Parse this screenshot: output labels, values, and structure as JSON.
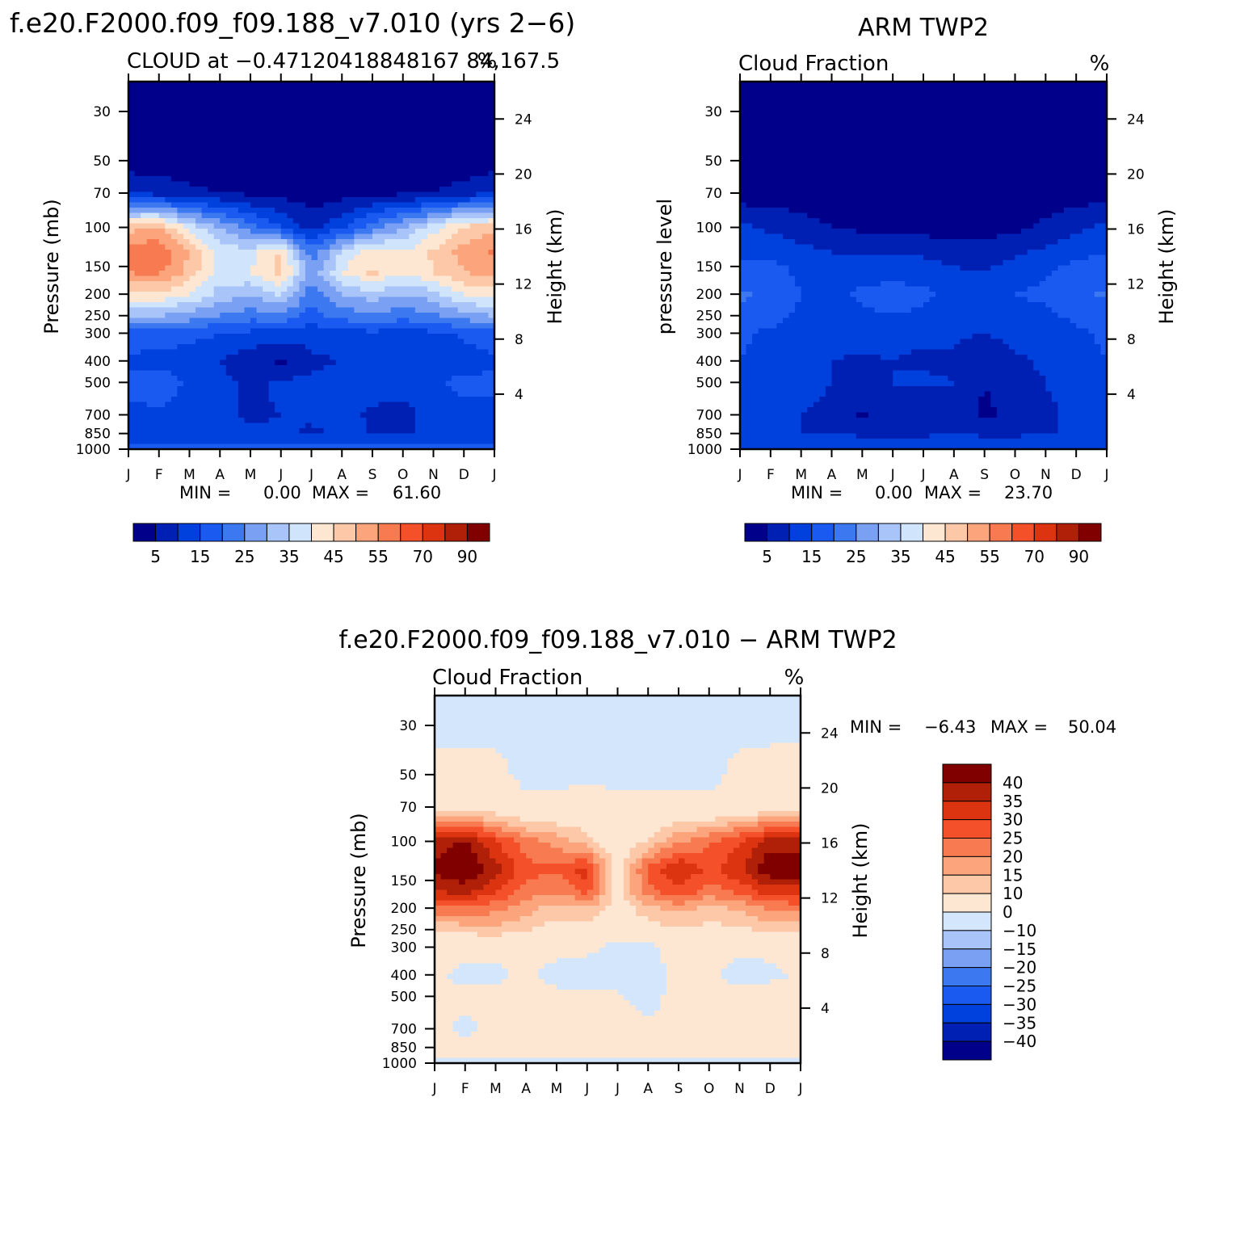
{
  "chart_data": [
    {
      "type": "heatmap",
      "panel_title": "f.e20.F2000.f09_f09.188_v7.010 (yrs 2−6)",
      "left_label": "CLOUD at −0.47120418848167 84,167.5",
      "units": "%",
      "ylabel": "Pressure (mb)",
      "y2label": "Height (km)",
      "x_ticks": [
        "J",
        "F",
        "M",
        "A",
        "M",
        "J",
        "J",
        "A",
        "S",
        "O",
        "N",
        "D",
        "J"
      ],
      "y_ticks": [
        "30",
        "50",
        "70",
        "100",
        "150",
        "200",
        "250",
        "300",
        "400",
        "500",
        "700",
        "850",
        "1000"
      ],
      "y2_ticks": [
        "24",
        "20",
        "16",
        "12",
        "8",
        "4"
      ],
      "stats": {
        "min_label": "MIN =",
        "min": "0.00",
        "max_label": "MAX =",
        "max": "61.60"
      },
      "levels": [
        0,
        5,
        10,
        15,
        20,
        25,
        30,
        35,
        40,
        45,
        50,
        55,
        60,
        70,
        80,
        90
      ],
      "colorbar_labels": [
        "5",
        "15",
        "25",
        "35",
        "45",
        "55",
        "70",
        "90"
      ],
      "colorbar_orientation": "horizontal",
      "bands": [
        {
          "p": 30,
          "values": [
            2,
            2,
            2,
            2,
            2,
            2,
            2,
            2,
            2,
            2,
            2,
            2,
            2
          ]
        },
        {
          "p": 50,
          "values": [
            2,
            2,
            2,
            2,
            2,
            2,
            2,
            2,
            2,
            2,
            2,
            2,
            2
          ]
        },
        {
          "p": 70,
          "values": [
            10,
            8,
            6,
            5,
            4,
            3,
            2,
            3,
            4,
            4,
            5,
            7,
            10
          ]
        },
        {
          "p": 100,
          "values": [
            48,
            50,
            38,
            30,
            22,
            15,
            8,
            14,
            22,
            30,
            38,
            46,
            48
          ]
        },
        {
          "p": 130,
          "values": [
            58,
            60,
            50,
            38,
            38,
            46,
            22,
            36,
            44,
            40,
            46,
            52,
            56
          ]
        },
        {
          "p": 160,
          "values": [
            55,
            56,
            48,
            38,
            40,
            47,
            26,
            40,
            46,
            40,
            45,
            50,
            52
          ]
        },
        {
          "p": 200,
          "values": [
            45,
            44,
            40,
            33,
            30,
            36,
            22,
            30,
            33,
            30,
            33,
            40,
            42
          ]
        },
        {
          "p": 250,
          "values": [
            30,
            30,
            28,
            25,
            22,
            24,
            18,
            22,
            24,
            22,
            24,
            28,
            30
          ]
        },
        {
          "p": 300,
          "values": [
            18,
            18,
            17,
            15,
            14,
            13,
            12,
            13,
            14,
            13,
            14,
            16,
            18
          ]
        },
        {
          "p": 400,
          "values": [
            14,
            13,
            12,
            10,
            7,
            4,
            9,
            10,
            10,
            10,
            11,
            12,
            14
          ]
        },
        {
          "p": 500,
          "values": [
            16,
            18,
            14,
            11,
            9,
            11,
            11,
            12,
            13,
            12,
            14,
            17,
            16
          ]
        },
        {
          "p": 700,
          "values": [
            14,
            14,
            13,
            12,
            9,
            10,
            11,
            12,
            9,
            8,
            12,
            13,
            14
          ]
        },
        {
          "p": 850,
          "values": [
            12,
            12,
            12,
            11,
            11,
            11,
            9,
            11,
            10,
            9,
            11,
            12,
            12
          ]
        },
        {
          "p": 1000,
          "values": [
            17,
            17,
            17,
            17,
            17,
            17,
            17,
            17,
            17,
            17,
            17,
            17,
            17
          ]
        }
      ]
    },
    {
      "type": "heatmap",
      "panel_title": "ARM TWP2",
      "left_label": "Cloud Fraction",
      "units": "%",
      "ylabel": "pressure level",
      "y2label": "Height (km)",
      "x_ticks": [
        "J",
        "F",
        "M",
        "A",
        "M",
        "J",
        "J",
        "A",
        "S",
        "O",
        "N",
        "D",
        "J"
      ],
      "y_ticks": [
        "30",
        "50",
        "70",
        "100",
        "150",
        "200",
        "250",
        "300",
        "400",
        "500",
        "700",
        "850",
        "1000"
      ],
      "y2_ticks": [
        "24",
        "20",
        "16",
        "12",
        "8",
        "4"
      ],
      "stats": {
        "min_label": "MIN =",
        "min": "0.00",
        "max_label": "MAX =",
        "max": "23.70"
      },
      "levels": [
        0,
        5,
        10,
        15,
        20,
        25,
        30,
        35,
        40,
        45,
        50,
        55,
        60,
        70,
        80,
        90
      ],
      "colorbar_labels": [
        "5",
        "15",
        "25",
        "35",
        "45",
        "55",
        "70",
        "90"
      ],
      "colorbar_orientation": "horizontal",
      "bands": [
        {
          "p": 30,
          "values": [
            1,
            1,
            1,
            1,
            1,
            1,
            1,
            1,
            1,
            1,
            1,
            1,
            1
          ]
        },
        {
          "p": 50,
          "values": [
            1,
            1,
            1,
            1,
            1,
            1,
            1,
            1,
            1,
            1,
            1,
            1,
            1
          ]
        },
        {
          "p": 70,
          "values": [
            2,
            2,
            2,
            1,
            1,
            1,
            1,
            1,
            1,
            1,
            2,
            2,
            3
          ]
        },
        {
          "p": 100,
          "values": [
            11,
            9,
            7,
            5,
            4,
            3,
            3,
            3,
            3,
            4,
            6,
            9,
            11
          ]
        },
        {
          "p": 150,
          "values": [
            16,
            16,
            14,
            13,
            12,
            13,
            12,
            10,
            9,
            12,
            14,
            16,
            17
          ]
        },
        {
          "p": 200,
          "values": [
            21,
            19,
            15,
            14,
            16,
            17,
            16,
            14,
            14,
            15,
            16,
            18,
            21
          ]
        },
        {
          "p": 250,
          "values": [
            19,
            17,
            14,
            13,
            14,
            15,
            14,
            13,
            12,
            13,
            14,
            16,
            18
          ]
        },
        {
          "p": 300,
          "values": [
            16,
            14,
            12,
            13,
            12,
            12,
            11,
            11,
            10,
            12,
            13,
            14,
            16
          ]
        },
        {
          "p": 400,
          "values": [
            15,
            13,
            12,
            10,
            9,
            10,
            9,
            9,
            5,
            9,
            11,
            13,
            15
          ]
        },
        {
          "p": 500,
          "values": [
            14,
            13,
            12,
            10,
            9,
            10,
            11,
            10,
            5,
            8,
            10,
            12,
            14
          ]
        },
        {
          "p": 700,
          "values": [
            12,
            11,
            10,
            9,
            4,
            9,
            6,
            9,
            4,
            6,
            9,
            11,
            12
          ]
        },
        {
          "p": 850,
          "values": [
            11,
            11,
            10,
            10,
            9,
            9,
            9,
            10,
            9,
            9,
            10,
            10,
            11
          ]
        },
        {
          "p": 1000,
          "values": [
            14,
            14,
            14,
            14,
            14,
            14,
            14,
            14,
            14,
            14,
            14,
            14,
            14
          ]
        }
      ]
    },
    {
      "type": "heatmap",
      "panel_title": "f.e20.F2000.f09_f09.188_v7.010 − ARM TWP2",
      "left_label": "Cloud Fraction",
      "units": "%",
      "ylabel": "Pressure (mb)",
      "y2label": "Height (km)",
      "x_ticks": [
        "J",
        "F",
        "M",
        "A",
        "M",
        "J",
        "J",
        "A",
        "S",
        "O",
        "N",
        "D",
        "J"
      ],
      "y_ticks": [
        "30",
        "50",
        "70",
        "100",
        "150",
        "200",
        "250",
        "300",
        "400",
        "500",
        "700",
        "850",
        "1000"
      ],
      "y2_ticks": [
        "24",
        "20",
        "16",
        "12",
        "8",
        "4"
      ],
      "stats": {
        "min_label": "MIN =",
        "min": "−6.43",
        "max_label": "MAX =",
        "max": "50.04"
      },
      "levels": [
        -45,
        -40,
        -35,
        -30,
        -25,
        -20,
        -15,
        -10,
        0,
        10,
        15,
        20,
        25,
        30,
        35,
        40,
        45
      ],
      "colorbar_labels": [
        "40",
        "35",
        "30",
        "25",
        "20",
        "15",
        "10",
        "0",
        "−10",
        "−15",
        "−20",
        "−25",
        "−30",
        "−35",
        "−40"
      ],
      "colorbar_orientation": "vertical",
      "bands": [
        {
          "p": 30,
          "values": [
            -2,
            -2,
            -2,
            -2,
            -2,
            -2,
            -2,
            -2,
            -2,
            -2,
            -2,
            -2,
            -2
          ]
        },
        {
          "p": 50,
          "values": [
            3,
            2,
            2,
            -2,
            -2,
            -2,
            -2,
            -2,
            -2,
            -2,
            2,
            3,
            3
          ]
        },
        {
          "p": 70,
          "values": [
            6,
            5,
            5,
            2,
            2,
            5,
            2,
            2,
            2,
            2,
            3,
            5,
            6
          ]
        },
        {
          "p": 100,
          "values": [
            36,
            42,
            30,
            22,
            18,
            12,
            4,
            11,
            19,
            24,
            30,
            38,
            38
          ]
        },
        {
          "p": 135,
          "values": [
            42,
            45,
            38,
            27,
            26,
            33,
            6,
            27,
            36,
            28,
            34,
            44,
            44
          ]
        },
        {
          "p": 170,
          "values": [
            34,
            36,
            30,
            22,
            20,
            26,
            8,
            22,
            28,
            22,
            26,
            32,
            32
          ]
        },
        {
          "p": 200,
          "values": [
            23,
            24,
            22,
            17,
            13,
            15,
            6,
            14,
            17,
            14,
            16,
            21,
            22
          ]
        },
        {
          "p": 250,
          "values": [
            11,
            12,
            13,
            11,
            7,
            6,
            4,
            7,
            10,
            8,
            9,
            11,
            12
          ]
        },
        {
          "p": 300,
          "values": [
            4,
            4,
            3,
            3,
            3,
            2,
            -3,
            -2,
            3,
            2,
            2,
            3,
            4
          ]
        },
        {
          "p": 400,
          "values": [
            2,
            -3,
            -2,
            2,
            -3,
            -4,
            -4,
            -4,
            3,
            2,
            -3,
            -3,
            2
          ]
        },
        {
          "p": 500,
          "values": [
            2,
            3,
            2,
            2,
            2,
            2,
            1,
            -3,
            3,
            3,
            3,
            6,
            2
          ]
        },
        {
          "p": 700,
          "values": [
            2,
            -2,
            2,
            2,
            2,
            2,
            2,
            2,
            2,
            2,
            2,
            2,
            2
          ]
        },
        {
          "p": 850,
          "values": [
            2,
            2,
            2,
            2,
            2,
            2,
            2,
            2,
            2,
            2,
            2,
            2,
            2
          ]
        },
        {
          "p": 1000,
          "values": [
            -2,
            -2,
            -2,
            -2,
            -2,
            -2,
            -2,
            -2,
            -2,
            -2,
            -2,
            -2,
            -2
          ]
        }
      ]
    }
  ],
  "colors": {
    "seq": [
      "#00008a",
      "#0020b4",
      "#0040dc",
      "#1a5af0",
      "#3c78f0",
      "#7aa0f4",
      "#a8c4f8",
      "#d0e4fc",
      "#fde6d2",
      "#fcc8a8",
      "#fca47c",
      "#f77a50",
      "#f4502a",
      "#dc3410",
      "#b02008",
      "#800000"
    ],
    "div": [
      "#00008a",
      "#0020b4",
      "#0040dc",
      "#1a5af0",
      "#3c78f0",
      "#7aa0f4",
      "#a8c4f8",
      "#d4e6fc",
      "#fde6d2",
      "#fcc8a8",
      "#fca47c",
      "#f77a50",
      "#f4502a",
      "#dc3410",
      "#b02008",
      "#800000"
    ]
  }
}
